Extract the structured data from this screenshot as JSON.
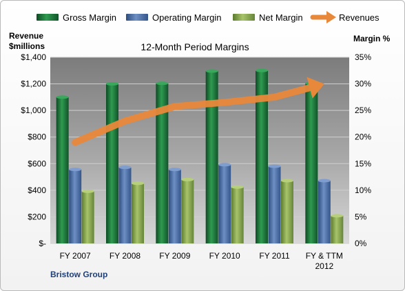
{
  "chart_data": {
    "type": "bar",
    "title": "12-Month Period Margins",
    "footer": "Bristow Group",
    "categories": [
      "FY 2007",
      "FY 2008",
      "FY 2009",
      "FY 2010",
      "FY 2011",
      "FY & TTM 2012"
    ],
    "y_left": {
      "label_line1": "Revenue",
      "label_line2": "$millions",
      "range": [
        0,
        1400
      ],
      "ticks": [
        "$-",
        "$200",
        "$400",
        "$600",
        "$800",
        "$1,000",
        "$1,200",
        "$1,400"
      ]
    },
    "y_right": {
      "label": "Margin %",
      "range": [
        0,
        35
      ],
      "ticks": [
        "0%",
        "5%",
        "10%",
        "15%",
        "20%",
        "25%",
        "30%",
        "35%"
      ]
    },
    "series": [
      {
        "name": "Gross Margin",
        "axis": "right",
        "kind": "bar",
        "values": [
          27.5,
          30.0,
          30.1,
          32.4,
          32.5,
          30.1
        ],
        "color": "#1f7a3c"
      },
      {
        "name": "Operating Margin",
        "axis": "right",
        "kind": "bar",
        "values": [
          13.9,
          14.3,
          13.9,
          14.8,
          14.5,
          11.8
        ],
        "color": "#4a6fa5"
      },
      {
        "name": "Net Margin",
        "axis": "right",
        "kind": "bar",
        "values": [
          9.8,
          11.3,
          12.0,
          10.6,
          11.8,
          5.2
        ],
        "color": "#8eab52"
      },
      {
        "name": "Revenues",
        "axis": "left",
        "kind": "line",
        "values": [
          760,
          920,
          1030,
          1060,
          1100,
          1200
        ],
        "color": "#e8883a"
      }
    ],
    "grid": true,
    "legend_position": "top"
  }
}
